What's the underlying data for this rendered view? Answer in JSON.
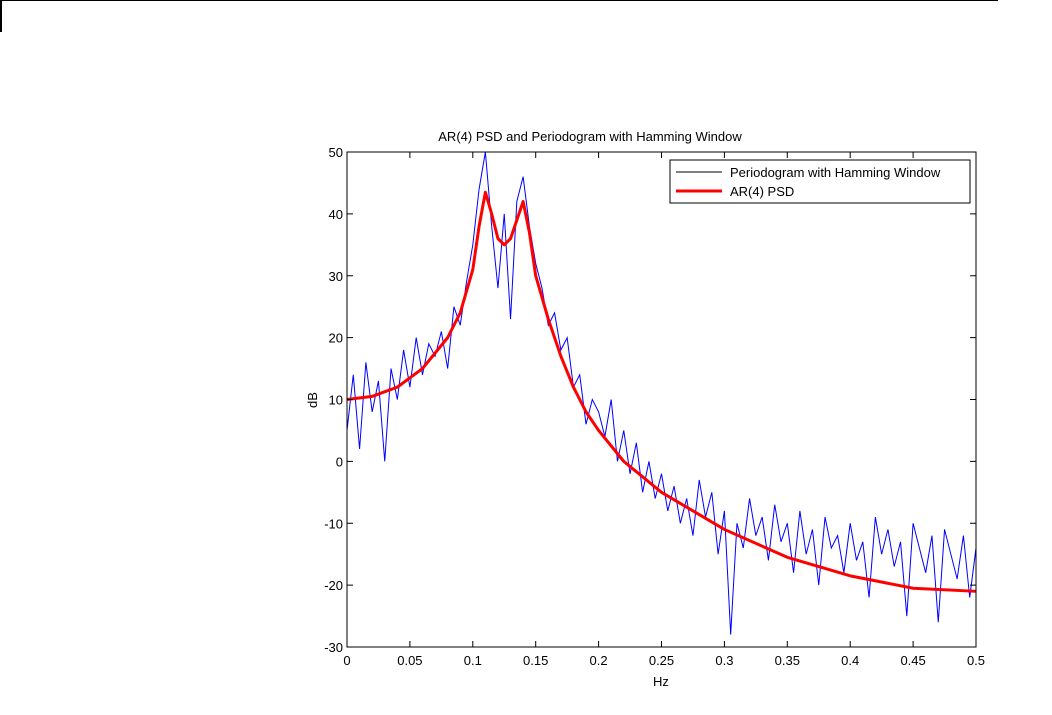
{
  "chart_data": {
    "type": "line",
    "title": "AR(4) PSD and Periodogram with Hamming Window",
    "xlabel": "Hz",
    "ylabel": "dB",
    "xlim": [
      0,
      0.5
    ],
    "ylim": [
      -30,
      50
    ],
    "xticks": [
      "0",
      "0.05",
      "0.1",
      "0.15",
      "0.2",
      "0.25",
      "0.3",
      "0.35",
      "0.4",
      "0.45",
      "0.5"
    ],
    "yticks": [
      "-30",
      "-20",
      "-10",
      "0",
      "10",
      "20",
      "30",
      "40",
      "50"
    ],
    "grid": false,
    "legend_position": "top-right",
    "series": [
      {
        "name": "Periodogram with Hamming Window",
        "color": "#0000ff",
        "x_start": 0,
        "x_step": 0.005,
        "values": [
          5,
          14,
          2,
          16,
          8,
          13,
          0,
          15,
          10,
          18,
          12,
          20,
          14,
          19,
          17,
          21,
          15,
          25,
          22,
          29,
          35,
          44,
          50,
          38,
          28,
          40,
          23,
          42,
          46,
          38,
          32,
          28,
          22,
          24,
          18,
          20,
          12,
          14,
          6,
          10,
          8,
          4,
          10,
          0,
          5,
          -2,
          3,
          -5,
          0,
          -6,
          -2,
          -8,
          -4,
          -10,
          -6,
          -12,
          -3,
          -9,
          -5,
          -15,
          -8,
          -28,
          -10,
          -14,
          -6,
          -12,
          -9,
          -16,
          -7,
          -13,
          -10,
          -18,
          -8,
          -15,
          -11,
          -20,
          -9,
          -14,
          -12,
          -18,
          -10,
          -16,
          -13,
          -22,
          -9,
          -15,
          -11,
          -17,
          -13,
          -25,
          -10,
          -14,
          -18,
          -12,
          -26,
          -11,
          -15,
          -19,
          -12,
          -22,
          -14
        ]
      },
      {
        "name": "AR(4) PSD",
        "color": "#ff0000",
        "x": [
          0,
          0.02,
          0.04,
          0.06,
          0.08,
          0.09,
          0.1,
          0.105,
          0.11,
          0.115,
          0.12,
          0.125,
          0.13,
          0.135,
          0.14,
          0.145,
          0.15,
          0.16,
          0.17,
          0.18,
          0.19,
          0.2,
          0.22,
          0.25,
          0.3,
          0.35,
          0.4,
          0.45,
          0.5
        ],
        "values": [
          10,
          10.5,
          12,
          15,
          20,
          24,
          31,
          38,
          43.5,
          40,
          36,
          35,
          36,
          39,
          42,
          37,
          30,
          23,
          17,
          12,
          8,
          5,
          0,
          -5,
          -11,
          -15.5,
          -18.5,
          -20.5,
          -21
        ]
      }
    ]
  }
}
